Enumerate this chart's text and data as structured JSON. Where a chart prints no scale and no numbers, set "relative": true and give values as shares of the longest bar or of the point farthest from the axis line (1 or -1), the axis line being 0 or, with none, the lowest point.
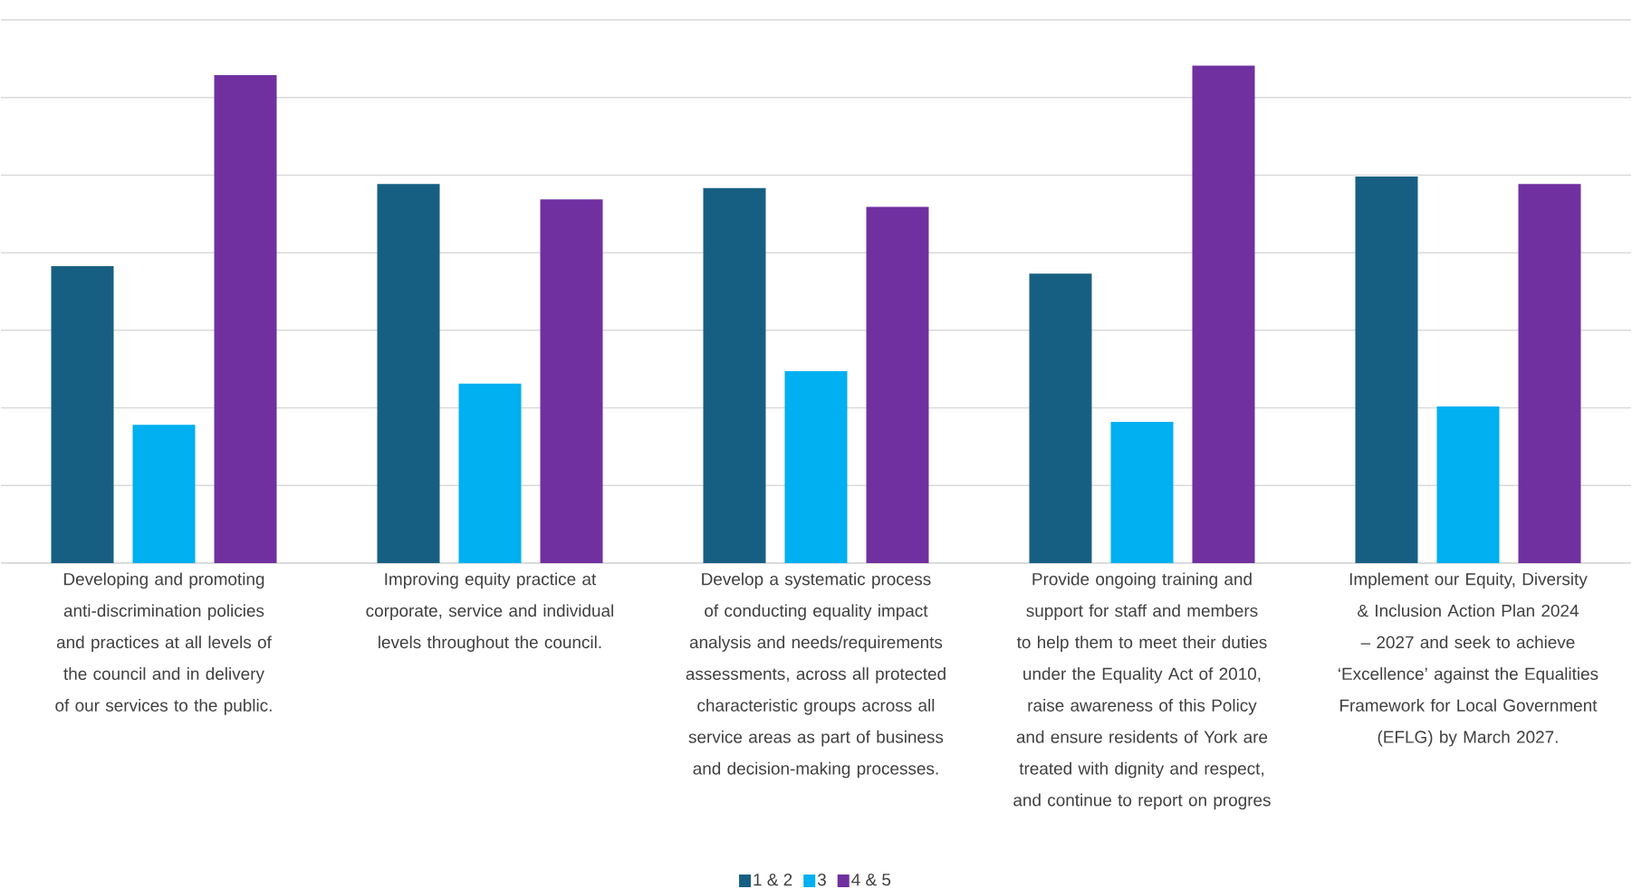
{
  "chart_data": {
    "type": "bar",
    "relative": true,
    "grid": "y",
    "legend": "bottom",
    "categories": [
      "Developing and promoting anti-discrimination policies and practices at all levels of the council and in delivery of our services to the public.",
      "Improving equity practice at corporate, service and individual levels throughout the council.",
      "Develop a systematic process of conducting equality impact analysis and needs/requirements assessments, across all protected characteristic groups across all service areas as part of business and decision-making processes.",
      "Provide ongoing training and support for staff and members to help them to meet their duties under the Equality Act of 2010, raise awareness of this Policy and ensure residents of York are treated with dignity and respect, and continue to report on progres",
      "Implement our Equity, Diversity & Inclusion Action Plan 2024 – 2027 and seek to achieve ‘Excellence’ against the Equalities Framework for Local Government (EFLG) by March 2027."
    ],
    "series": [
      {
        "name": "1 & 2",
        "color": "#175f82",
        "values": [
          0.597,
          0.762,
          0.754,
          0.582,
          0.777
        ]
      },
      {
        "name": "3",
        "color": "#00b0f0",
        "values": [
          0.278,
          0.361,
          0.386,
          0.284,
          0.315
        ]
      },
      {
        "name": "4 & 5",
        "color": "#7030a0",
        "values": [
          0.981,
          0.731,
          0.716,
          1,
          0.762
        ]
      }
    ]
  }
}
